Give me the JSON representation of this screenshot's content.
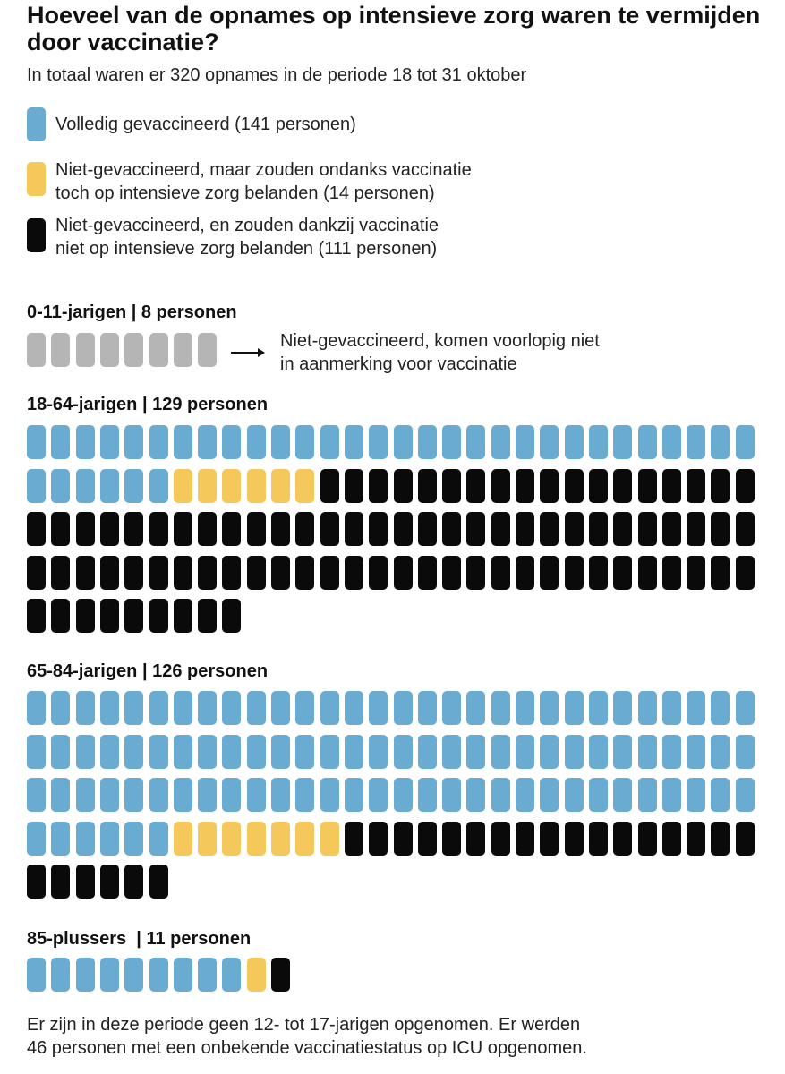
{
  "colors": {
    "vaccinated": "#6aabd2",
    "unavoidable": "#f5c85c",
    "avoidable": "#0a0a0a",
    "not_eligible": "#b5b5b5"
  },
  "header": {
    "title": "Hoeveel van de opnames op intensieve zorg waren te vermijden door vaccinatie?",
    "subtitle": "In totaal waren er 320 opnames in de periode 18 tot 31 oktober"
  },
  "legend": [
    {
      "key": "vaccinated",
      "label": "Volledig gevaccineerd (141 personen)"
    },
    {
      "key": "unavoidable",
      "label": "Niet-gevaccineerd, maar zouden ondanks vaccinatie\ntoch op intensieve zorg belanden (14 personen)"
    },
    {
      "key": "avoidable",
      "label": "Niet-gevaccineerd, en zouden dankzij vaccinatie\nniet op intensieve zorg belanden (111 personen)"
    }
  ],
  "children_note": "Niet-gevaccineerd, komen voorlopig niet\nin aanmerking voor vaccinatie",
  "footnote": "Er zijn in deze periode geen 12- tot 17-jarigen opgenomen. Er werden\n46 personen met een onbekende vaccinatiestatus op ICU opgenomen.",
  "chart_data": {
    "type": "waffle",
    "title": "Hoeveel van de opnames op intensieve zorg waren te vermijden door vaccinatie?",
    "subtitle": "In totaal waren er 320 opnames in de periode 18 tot 31 oktober",
    "units_per_row": 30,
    "unit": "1 persoon",
    "categories": [
      "Volledig gevaccineerd",
      "Niet-gevaccineerd, maar zouden ondanks vaccinatie toch op intensieve zorg belanden",
      "Niet-gevaccineerd, en zouden dankzij vaccinatie niet op intensieve zorg belanden",
      "Niet-gevaccineerd, komen voorlopig niet in aanmerking voor vaccinatie"
    ],
    "groups": [
      {
        "label": "0-11-jarigen | 8 personen",
        "total": 8,
        "vaccinated": 0,
        "unavoidable": 0,
        "avoidable": 0,
        "not_eligible": 8
      },
      {
        "label": "18-64-jarigen | 129 personen",
        "total": 129,
        "vaccinated": 36,
        "unavoidable": 6,
        "avoidable": 87,
        "not_eligible": 0
      },
      {
        "label": "65-84-jarigen | 126 personen",
        "total": 126,
        "vaccinated": 96,
        "unavoidable": 7,
        "avoidable": 23,
        "not_eligible": 0
      },
      {
        "label": "85-plussers  | 11 personen",
        "total": 11,
        "vaccinated": 9,
        "unavoidable": 1,
        "avoidable": 1,
        "not_eligible": 0
      }
    ]
  }
}
